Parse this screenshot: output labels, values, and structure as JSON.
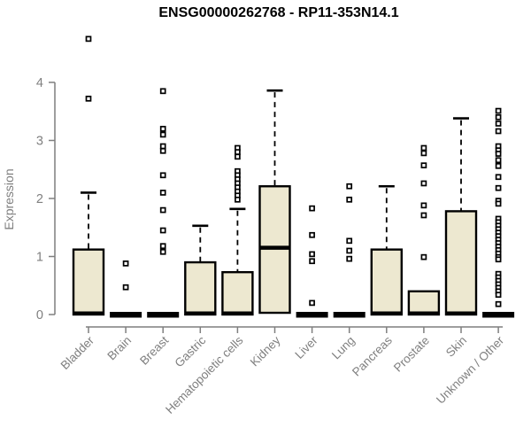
{
  "page": {
    "title": "ENSG00000262768 - RP11-353N14.1"
  },
  "chart_data": {
    "type": "boxplot",
    "title": "ENSG00000262768 - RP11-353N14.1",
    "xlabel": "",
    "ylabel": "Expression",
    "ylim": [
      0,
      4
    ],
    "yticks": [
      0,
      1,
      2,
      3,
      4
    ],
    "grid": false,
    "legend": false,
    "colors": {
      "box_fill": "#ede8d0",
      "box_stroke": "#000000",
      "median": "#000000",
      "outlier_fill": "#ffffff",
      "axis": "#7f7f7f",
      "label": "#7f7f7f",
      "title": "#000000"
    },
    "categories": [
      "Bladder",
      "Brain",
      "Breast",
      "Gastric",
      "Hematopoietic cells",
      "Kidney",
      "Liver",
      "Lung",
      "Pancreas",
      "Prostate",
      "Skin",
      "Unknown / Other"
    ],
    "boxes": [
      {
        "category": "Bladder",
        "q1": 0,
        "median": 0.02,
        "q3": 1.12,
        "whisker_low": 0,
        "whisker_high": 2.1,
        "outliers": [
          4.75,
          3.72
        ]
      },
      {
        "category": "Brain",
        "q1": 0,
        "median": 0.01,
        "q3": 0.02,
        "whisker_low": 0,
        "whisker_high": 0.02,
        "outliers": [
          0.88,
          0.47
        ]
      },
      {
        "category": "Breast",
        "q1": 0,
        "median": 0.01,
        "q3": 0.02,
        "whisker_low": 0,
        "whisker_high": 0.02,
        "outliers": [
          3.85,
          3.2,
          3.1,
          2.9,
          2.82,
          2.4,
          2.1,
          1.8,
          1.45,
          1.18,
          1.08
        ]
      },
      {
        "category": "Gastric",
        "q1": 0,
        "median": 0.02,
        "q3": 0.9,
        "whisker_low": 0,
        "whisker_high": 1.53,
        "outliers": []
      },
      {
        "category": "Hematopoietic cells",
        "q1": 0,
        "median": 0.02,
        "q3": 0.73,
        "whisker_low": 0,
        "whisker_high": 1.82,
        "outliers": [
          2.87,
          2.8,
          2.72,
          2.47,
          2.4,
          2.33,
          2.26,
          2.19,
          2.12,
          2.05,
          1.98
        ]
      },
      {
        "category": "Kidney",
        "q1": 0.03,
        "median": 1.15,
        "q3": 2.21,
        "whisker_low": 0.03,
        "whisker_high": 3.86,
        "outliers": []
      },
      {
        "category": "Liver",
        "q1": 0,
        "median": 0.01,
        "q3": 0.02,
        "whisker_low": 0,
        "whisker_high": 0.02,
        "outliers": [
          1.83,
          1.37,
          1.04,
          0.92,
          0.2
        ]
      },
      {
        "category": "Lung",
        "q1": 0,
        "median": 0.01,
        "q3": 0.02,
        "whisker_low": 0,
        "whisker_high": 0.02,
        "outliers": [
          2.21,
          1.98,
          1.27,
          1.1,
          0.96
        ]
      },
      {
        "category": "Pancreas",
        "q1": 0,
        "median": 0.02,
        "q3": 1.12,
        "whisker_low": 0,
        "whisker_high": 2.21,
        "outliers": []
      },
      {
        "category": "Prostate",
        "q1": 0,
        "median": 0.02,
        "q3": 0.4,
        "whisker_low": 0,
        "whisker_high": 0.4,
        "outliers": [
          2.87,
          2.78,
          2.57,
          2.26,
          1.88,
          1.71,
          0.99
        ]
      },
      {
        "category": "Skin",
        "q1": 0,
        "median": 0.02,
        "q3": 1.78,
        "whisker_low": 0,
        "whisker_high": 3.38,
        "outliers": []
      },
      {
        "category": "Unknown / Other",
        "q1": 0,
        "median": 0.01,
        "q3": 0.02,
        "whisker_low": 0,
        "whisker_high": 0.02,
        "outliers": [
          3.51,
          3.4,
          3.29,
          3.16,
          2.9,
          2.83,
          2.77,
          2.66,
          2.56,
          2.37,
          2.18,
          1.96,
          1.91,
          1.65,
          1.59,
          1.53,
          1.47,
          1.41,
          1.35,
          1.29,
          1.23,
          1.17,
          1.11,
          1.05,
          0.99,
          0.95,
          0.7,
          0.64,
          0.58,
          0.52,
          0.46,
          0.4,
          0.34,
          0.18
        ]
      }
    ]
  }
}
